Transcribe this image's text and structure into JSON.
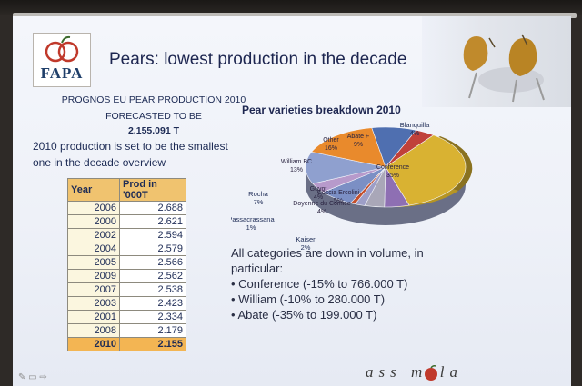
{
  "slide": {
    "logo": {
      "text": "FAPA"
    },
    "title": "Pears: lowest production in the decade",
    "forecast_lines": [
      "PROGNOS EU PEAR PRODUCTION 2010",
      "FORECASTED TO BE",
      "2.155.091 T"
    ],
    "statement_lines": [
      "2010 production is set to be the smallest",
      "one in the decade overview"
    ],
    "table": {
      "headers": [
        "Year",
        "Prod in '000T"
      ],
      "rows": [
        [
          "2006",
          "2.688"
        ],
        [
          "2000",
          "2.621"
        ],
        [
          "2002",
          "2.594"
        ],
        [
          "2004",
          "2.579"
        ],
        [
          "2005",
          "2.566"
        ],
        [
          "2009",
          "2.562"
        ],
        [
          "2007",
          "2.538"
        ],
        [
          "2003",
          "2.423"
        ],
        [
          "2001",
          "2.334"
        ],
        [
          "2008",
          "2.179"
        ],
        [
          "2010",
          "2.155"
        ]
      ],
      "highlight_year": "2010"
    },
    "chart": {
      "title": "Pear varieties breakdown 2010",
      "slices": [
        {
          "name": "Abate F",
          "pct": "9%",
          "color": "#4f6fb0"
        },
        {
          "name": "Blanquilla",
          "pct": "4%",
          "color": "#c0413a"
        },
        {
          "name": "Conference",
          "pct": "35%",
          "color": "#d9b232"
        },
        {
          "name": "Coscia Ercolini",
          "pct": "5%",
          "color": "#8e6fb3"
        },
        {
          "name": "Doyenne du Comice",
          "pct": "4%",
          "color": "#a9a7b8"
        },
        {
          "name": "Kaiser",
          "pct": "2%",
          "color": "#9d9ec7"
        },
        {
          "name": "Passacrassana",
          "pct": "1%",
          "color": "#c34f2c"
        },
        {
          "name": "Rocha",
          "pct": "7%",
          "color": "#7b8fc4"
        },
        {
          "name": "Guyot",
          "pct": "4%",
          "color": "#b79acb"
        },
        {
          "name": "William BC",
          "pct": "13%",
          "color": "#8fa0cf"
        },
        {
          "name": "Other",
          "pct": "16%",
          "color": "#e98a2c"
        }
      ]
    },
    "summary": {
      "intro_lines": [
        "All categories are down in volume, in",
        "particular:"
      ],
      "bullets": [
        "Conference (-15% to 766.000 T)",
        "William (-10% to 280.000 T)",
        "Abate (-35% to 199.000 T)"
      ]
    },
    "brand": "ass   mela"
  }
}
